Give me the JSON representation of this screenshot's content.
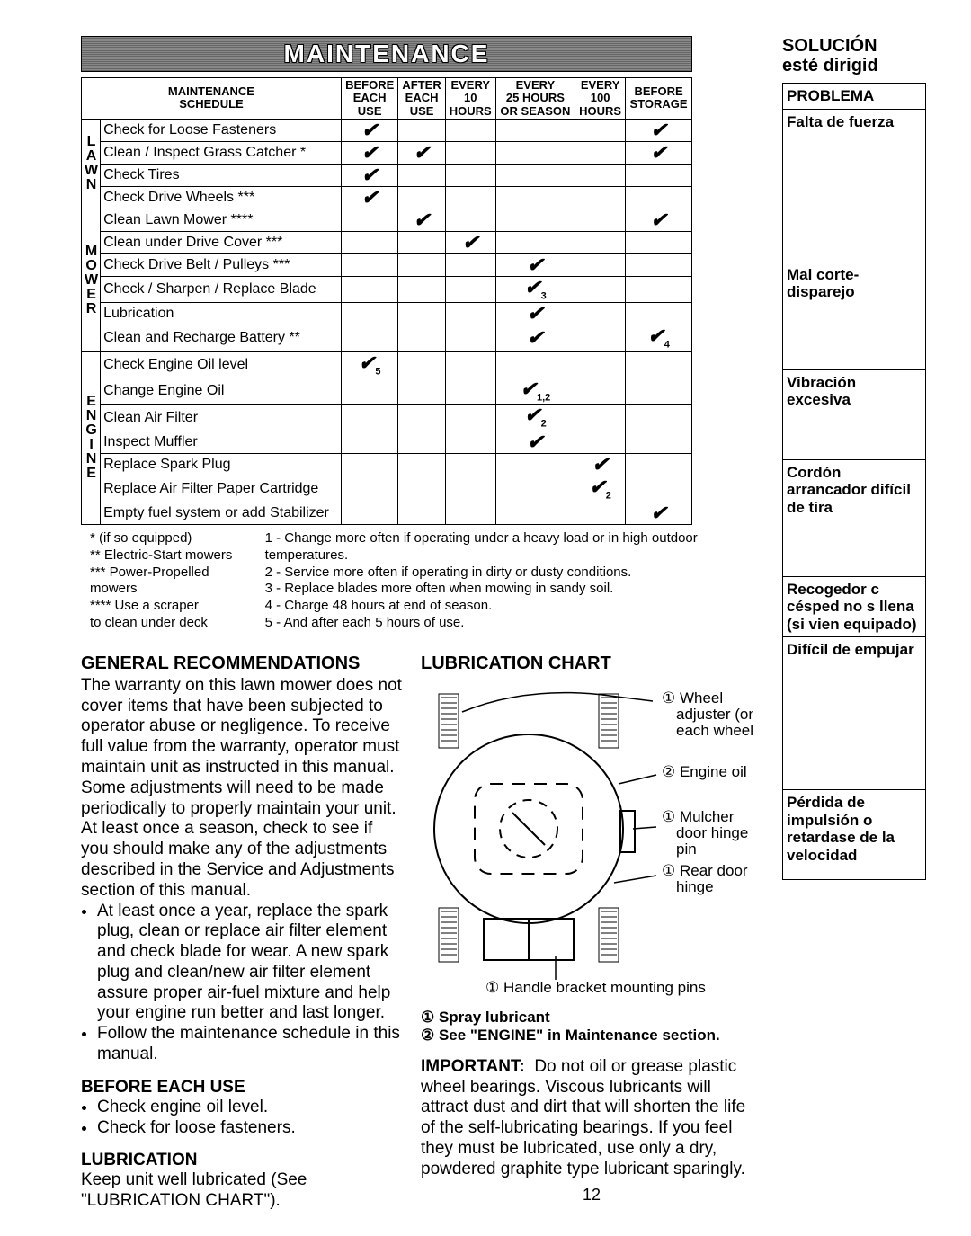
{
  "banner": "MAINTENANCE",
  "schedule": {
    "title_line1": "MAINTENANCE",
    "title_line2": "SCHEDULE",
    "columns": [
      "BEFORE EACH USE",
      "AFTER EACH USE",
      "EVERY 10 HOURS",
      "EVERY 25 HOURS OR SEASON",
      "EVERY 100 HOURS",
      "BEFORE STORAGE"
    ],
    "groups": [
      {
        "label": "LAWN",
        "rows": [
          {
            "task": "Check for Loose Fasteners",
            "m": [
              "✔",
              "",
              "",
              "",
              "",
              "✔"
            ]
          },
          {
            "task": "Clean / Inspect Grass Catcher *",
            "m": [
              "✔",
              "✔",
              "",
              "",
              "",
              "✔"
            ]
          },
          {
            "task": "Check Tires",
            "m": [
              "✔",
              "",
              "",
              "",
              "",
              ""
            ]
          },
          {
            "task": "Check Drive Wheels ***",
            "m": [
              "✔",
              "",
              "",
              "",
              "",
              ""
            ]
          }
        ]
      },
      {
        "label": "MOWER",
        "rows": [
          {
            "task": "Clean Lawn Mower ****",
            "m": [
              "",
              "✔",
              "",
              "",
              "",
              "✔"
            ]
          },
          {
            "task": "Clean under Drive Cover ***",
            "m": [
              "",
              "",
              "✔",
              "",
              "",
              ""
            ]
          },
          {
            "task": "Check Drive Belt / Pulleys ***",
            "m": [
              "",
              "",
              "",
              "✔",
              "",
              ""
            ]
          },
          {
            "task": "Check / Sharpen / Replace Blade",
            "m": [
              "",
              "",
              "",
              "✔3",
              "",
              ""
            ]
          },
          {
            "task": "Lubrication",
            "m": [
              "",
              "",
              "",
              "✔",
              "",
              ""
            ]
          },
          {
            "task": "Clean and Recharge Battery **",
            "m": [
              "",
              "",
              "",
              "✔",
              "",
              "✔4"
            ]
          }
        ]
      },
      {
        "label": "ENGINE",
        "rows": [
          {
            "task": "Check Engine Oil level",
            "m": [
              "✔5",
              "",
              "",
              "",
              "",
              ""
            ]
          },
          {
            "task": "Change Engine Oil",
            "m": [
              "",
              "",
              "",
              "✔1,2",
              "",
              ""
            ]
          },
          {
            "task": "Clean Air Filter",
            "m": [
              "",
              "",
              "",
              "✔2",
              "",
              ""
            ]
          },
          {
            "task": "Inspect Muffler",
            "m": [
              "",
              "",
              "",
              "✔",
              "",
              ""
            ]
          },
          {
            "task": "Replace Spark Plug",
            "m": [
              "",
              "",
              "",
              "",
              "✔",
              ""
            ]
          },
          {
            "task": "Replace Air Filter Paper Cartridge",
            "m": [
              "",
              "",
              "",
              "",
              "✔2",
              ""
            ]
          },
          {
            "task": "Empty fuel system or add Stabilizer",
            "m": [
              "",
              "",
              "",
              "",
              "",
              "✔"
            ]
          }
        ]
      }
    ]
  },
  "footnotes": {
    "left": [
      "* (if so equipped)",
      "** Electric-Start mowers",
      "*** Power-Propelled mowers",
      "**** Use a scraper",
      "        to clean under deck"
    ],
    "right": [
      "1 - Change more often if operating under a heavy load or in high outdoor temperatures.",
      "2 - Service more often if operating in dirty or dusty conditions.",
      "3 - Replace blades more often when mowing in sandy soil.",
      "4 - Charge 48 hours at end of season.",
      "5 - And after each 5 hours of use."
    ]
  },
  "general": {
    "heading": "GENERAL RECOMMENDATIONS",
    "para": "The warranty on this lawn mower does not cover items that have been subjected to operator abuse or negligence. To receive full value from the warranty, operator must maintain unit as instructed in this manual. Some adjustments will need to be made periodically to properly maintain your unit. At least once a season, check to see if you should make any of the adjustments described in the Service and Adjustments section of this manual.",
    "bullets": [
      "At least once a year, replace the spark plug, clean or replace air filter element and check blade for wear. A new spark plug and clean/new air filter element assure proper air-fuel mixture and help your engine run better and last longer.",
      "Follow the maintenance schedule in this manual."
    ],
    "before_heading": "BEFORE EACH USE",
    "before_bullets": [
      "Check engine oil level.",
      "Check for loose fasteners."
    ],
    "lubrication_heading": "LUBRICATION",
    "lubrication_text": "Keep unit well lubricated (See \"LUBRICATION CHART\")."
  },
  "lube": {
    "heading": "LUBRICATION CHART",
    "labels": {
      "wheel": "① Wheel adjuster (on each wheel)",
      "engine": "② Engine oil",
      "mulcher": "① Mulcher door hinge pin",
      "rear": "① Rear door hinge",
      "handle": "① Handle bracket mounting pins"
    },
    "legend1": "① Spray lubricant",
    "legend2": "② See \"ENGINE\" in Maintenance section.",
    "important_label": "IMPORTANT:",
    "important_text": "Do not oil or grease plastic wheel bearings.  Viscous lubricants will attract dust and dirt that will shorten the life of the self-lubricating bearings.  If you feel they must be lubricated, use only a dry, powdered graphite type lubricant sparingly."
  },
  "page_number": "12",
  "right": {
    "h1": "SOLUCIÓN",
    "h2": "esté dirigid",
    "problema": "PROBLEMA",
    "items": [
      "Falta de fuerza",
      "Mal corte-disparejo",
      "Vibración excesiva",
      "Cordón arrancador difícil de tira",
      "Recogedor c césped no s llena (si vien equipado)",
      "Difícil de empujar",
      "Pérdida de impulsión o retardase de la velocidad"
    ]
  },
  "colors": {
    "border": "#000000",
    "bg": "#ffffff",
    "check": "#000000"
  }
}
